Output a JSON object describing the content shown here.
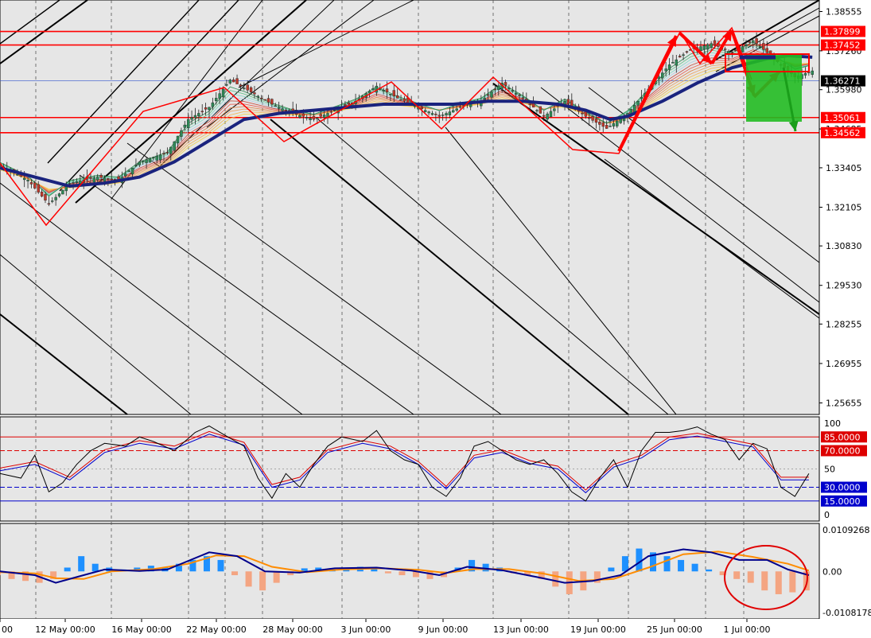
{
  "chart_data": {
    "type": "line",
    "colors": {
      "background": "#e6e6e6",
      "frame": "#000000",
      "candle_up": "#2e8b57",
      "candle_down": "#c0392b",
      "slow_ema": "#1a237e",
      "level_line": "#ff0000",
      "level_label_bg": "#ff0000",
      "current_price_bg": "#000000",
      "blue_level": "#0000ff",
      "signal_box": "#22bb22",
      "stoch_main": "#000000",
      "stoch_blue": "#0000cc",
      "stoch_red": "#dd0000",
      "hist_pos": "#1e90ff",
      "hist_neg": "#f4a582",
      "macd_line": "#00008b",
      "signal_line": "#ff8c00",
      "callout_ellipse": "#e00000"
    },
    "time_labels": [
      "00",
      "12 May 00:00",
      "16 May 00:00",
      "22 May 00:00",
      "28 May 00:00",
      "3 Jun 00:00",
      "9 Jun 00:00",
      "13 Jun 00:00",
      "19 Jun 00:00",
      "25 Jun 00:00",
      "1 Jul 00:00"
    ],
    "main": {
      "ylim": [
        1.25275,
        1.38935
      ],
      "ticks": [
        "1.38555",
        "1.37260",
        "1.35980",
        "1.34685",
        "1.33405",
        "1.32105",
        "1.30830",
        "1.29530",
        "1.28255",
        "1.26955",
        "1.25655"
      ],
      "levels": [
        {
          "value": 1.37899,
          "label": "1.37899"
        },
        {
          "value": 1.37452,
          "label": "1.37452"
        },
        {
          "value": 1.35061,
          "label": "1.35061"
        },
        {
          "value": 1.34562,
          "label": "1.34562"
        }
      ],
      "current_price": {
        "value": 1.36271,
        "label": "1.36271"
      },
      "price_path": [
        [
          0,
          1.335
        ],
        [
          8,
          1.33
        ],
        [
          14,
          1.322
        ],
        [
          20,
          1.329
        ],
        [
          28,
          1.331
        ],
        [
          34,
          1.33
        ],
        [
          40,
          1.336
        ],
        [
          48,
          1.339
        ],
        [
          54,
          1.35
        ],
        [
          60,
          1.354
        ],
        [
          66,
          1.363
        ],
        [
          72,
          1.359
        ],
        [
          78,
          1.355
        ],
        [
          84,
          1.352
        ],
        [
          90,
          1.35
        ],
        [
          96,
          1.353
        ],
        [
          102,
          1.356
        ],
        [
          108,
          1.361
        ],
        [
          114,
          1.357
        ],
        [
          120,
          1.354
        ],
        [
          126,
          1.351
        ],
        [
          132,
          1.354
        ],
        [
          138,
          1.356
        ],
        [
          144,
          1.362
        ],
        [
          150,
          1.357
        ],
        [
          156,
          1.351
        ],
        [
          162,
          1.356
        ],
        [
          168,
          1.351
        ],
        [
          174,
          1.347
        ],
        [
          180,
          1.352
        ],
        [
          186,
          1.36
        ],
        [
          192,
          1.368
        ],
        [
          198,
          1.373
        ],
        [
          204,
          1.375
        ],
        [
          210,
          1.372
        ],
        [
          216,
          1.376
        ],
        [
          222,
          1.37
        ],
        [
          228,
          1.364
        ],
        [
          233,
          1.366
        ]
      ],
      "slow_ema": [
        [
          0,
          1.334
        ],
        [
          10,
          1.331
        ],
        [
          20,
          1.328
        ],
        [
          30,
          1.329
        ],
        [
          40,
          1.331
        ],
        [
          50,
          1.336
        ],
        [
          60,
          1.343
        ],
        [
          70,
          1.35
        ],
        [
          80,
          1.352
        ],
        [
          90,
          1.353
        ],
        [
          100,
          1.354
        ],
        [
          110,
          1.355
        ],
        [
          120,
          1.355
        ],
        [
          130,
          1.355
        ],
        [
          140,
          1.356
        ],
        [
          150,
          1.356
        ],
        [
          160,
          1.355
        ],
        [
          168,
          1.353
        ],
        [
          175,
          1.35
        ],
        [
          180,
          1.351
        ],
        [
          190,
          1.356
        ],
        [
          200,
          1.362
        ],
        [
          210,
          1.367
        ],
        [
          220,
          1.37
        ],
        [
          226,
          1.371
        ],
        [
          233,
          1.3705
        ]
      ]
    },
    "stochastic": {
      "ylim": [
        0,
        100
      ],
      "ticks": [
        "100",
        "50",
        "0"
      ],
      "levels": [
        {
          "value": 85.0,
          "label": "85.0000",
          "style": "solid",
          "color": "red"
        },
        {
          "value": 70.0,
          "label": "70.0000",
          "style": "dashed",
          "color": "red"
        },
        {
          "value": 30.0,
          "label": "30.0000",
          "style": "dashed",
          "color": "blue"
        },
        {
          "value": 15.0,
          "label": "15.0000",
          "style": "solid",
          "color": "blue"
        }
      ],
      "main_line": [
        [
          0,
          45
        ],
        [
          6,
          40
        ],
        [
          10,
          65
        ],
        [
          14,
          25
        ],
        [
          18,
          35
        ],
        [
          22,
          55
        ],
        [
          26,
          70
        ],
        [
          30,
          78
        ],
        [
          36,
          75
        ],
        [
          40,
          85
        ],
        [
          44,
          80
        ],
        [
          50,
          70
        ],
        [
          56,
          90
        ],
        [
          60,
          97
        ],
        [
          64,
          88
        ],
        [
          70,
          75
        ],
        [
          74,
          40
        ],
        [
          78,
          18
        ],
        [
          82,
          45
        ],
        [
          86,
          30
        ],
        [
          90,
          55
        ],
        [
          94,
          75
        ],
        [
          98,
          85
        ],
        [
          104,
          80
        ],
        [
          108,
          92
        ],
        [
          112,
          70
        ],
        [
          116,
          60
        ],
        [
          120,
          55
        ],
        [
          124,
          30
        ],
        [
          128,
          20
        ],
        [
          132,
          40
        ],
        [
          136,
          75
        ],
        [
          140,
          80
        ],
        [
          144,
          70
        ],
        [
          148,
          60
        ],
        [
          152,
          55
        ],
        [
          156,
          60
        ],
        [
          160,
          45
        ],
        [
          164,
          25
        ],
        [
          168,
          15
        ],
        [
          172,
          40
        ],
        [
          176,
          60
        ],
        [
          180,
          30
        ],
        [
          184,
          70
        ],
        [
          188,
          90
        ],
        [
          192,
          90
        ],
        [
          196,
          92
        ],
        [
          200,
          96
        ],
        [
          204,
          88
        ],
        [
          208,
          82
        ],
        [
          212,
          60
        ],
        [
          216,
          78
        ],
        [
          220,
          72
        ],
        [
          224,
          30
        ],
        [
          228,
          20
        ],
        [
          232,
          45
        ]
      ],
      "signal_line": [
        [
          0,
          48
        ],
        [
          10,
          55
        ],
        [
          20,
          38
        ],
        [
          30,
          68
        ],
        [
          40,
          78
        ],
        [
          50,
          72
        ],
        [
          60,
          88
        ],
        [
          70,
          76
        ],
        [
          78,
          30
        ],
        [
          86,
          38
        ],
        [
          94,
          68
        ],
        [
          104,
          78
        ],
        [
          112,
          72
        ],
        [
          120,
          55
        ],
        [
          128,
          28
        ],
        [
          136,
          62
        ],
        [
          144,
          68
        ],
        [
          152,
          56
        ],
        [
          160,
          50
        ],
        [
          168,
          24
        ],
        [
          176,
          52
        ],
        [
          184,
          62
        ],
        [
          192,
          82
        ],
        [
          200,
          86
        ],
        [
          208,
          80
        ],
        [
          216,
          74
        ],
        [
          224,
          38
        ],
        [
          232,
          38
        ]
      ]
    },
    "macd": {
      "ylim": [
        -0.0108178,
        0.0109268
      ],
      "ticks": [
        "0.0109268",
        "0.00",
        "-0.0108178"
      ],
      "histogram": [
        [
          0,
          -0.001
        ],
        [
          4,
          -0.002
        ],
        [
          8,
          -0.0025
        ],
        [
          12,
          -0.003
        ],
        [
          16,
          -0.002
        ],
        [
          20,
          0.001
        ],
        [
          24,
          0.004
        ],
        [
          28,
          0.002
        ],
        [
          32,
          0.001
        ],
        [
          36,
          0.0005
        ],
        [
          40,
          0.001
        ],
        [
          44,
          0.0015
        ],
        [
          48,
          0.001
        ],
        [
          52,
          0.002
        ],
        [
          56,
          0.003
        ],
        [
          60,
          0.004
        ],
        [
          64,
          0.003
        ],
        [
          68,
          -0.001
        ],
        [
          72,
          -0.004
        ],
        [
          76,
          -0.005
        ],
        [
          80,
          -0.003
        ],
        [
          84,
          -0.001
        ],
        [
          88,
          0.0008
        ],
        [
          92,
          0.001
        ],
        [
          96,
          0.0008
        ],
        [
          100,
          0.001
        ],
        [
          104,
          0.0012
        ],
        [
          108,
          0.0008
        ],
        [
          112,
          -0.0005
        ],
        [
          116,
          -0.001
        ],
        [
          120,
          -0.0015
        ],
        [
          124,
          -0.002
        ],
        [
          128,
          -0.0015
        ],
        [
          132,
          0.001
        ],
        [
          136,
          0.003
        ],
        [
          140,
          0.002
        ],
        [
          144,
          0.001
        ],
        [
          148,
          -0.0005
        ],
        [
          152,
          -0.001
        ],
        [
          156,
          -0.002
        ],
        [
          160,
          -0.004
        ],
        [
          164,
          -0.006
        ],
        [
          168,
          -0.005
        ],
        [
          172,
          -0.003
        ],
        [
          176,
          0.001
        ],
        [
          180,
          0.004
        ],
        [
          184,
          0.006
        ],
        [
          188,
          0.005
        ],
        [
          192,
          0.004
        ],
        [
          196,
          0.003
        ],
        [
          200,
          0.002
        ],
        [
          204,
          0.0005
        ],
        [
          208,
          -0.001
        ],
        [
          212,
          -0.002
        ],
        [
          216,
          -0.003
        ],
        [
          220,
          -0.005
        ],
        [
          224,
          -0.006
        ],
        [
          228,
          -0.0055
        ],
        [
          232,
          -0.005
        ]
      ],
      "macd_line": [
        [
          0,
          0.0
        ],
        [
          10,
          -0.001
        ],
        [
          16,
          -0.003
        ],
        [
          22,
          -0.0015
        ],
        [
          30,
          0.0005
        ],
        [
          40,
          0.0001
        ],
        [
          48,
          0.0005
        ],
        [
          60,
          0.005
        ],
        [
          68,
          0.004
        ],
        [
          76,
          0.0
        ],
        [
          86,
          -0.0003
        ],
        [
          96,
          0.0008
        ],
        [
          108,
          0.001
        ],
        [
          118,
          0.0002
        ],
        [
          126,
          -0.001
        ],
        [
          134,
          0.0012
        ],
        [
          144,
          0.0003
        ],
        [
          154,
          -0.0015
        ],
        [
          162,
          -0.003
        ],
        [
          170,
          -0.0025
        ],
        [
          178,
          -0.001
        ],
        [
          186,
          0.004
        ],
        [
          196,
          0.0058
        ],
        [
          204,
          0.005
        ],
        [
          212,
          0.003
        ],
        [
          220,
          0.003
        ],
        [
          226,
          0.0005
        ],
        [
          232,
          -0.001
        ]
      ],
      "signal_line": [
        [
          0,
          -0.0002
        ],
        [
          10,
          -0.0005
        ],
        [
          16,
          -0.0018
        ],
        [
          24,
          -0.002
        ],
        [
          32,
          0.0
        ],
        [
          44,
          0.0006
        ],
        [
          54,
          0.002
        ],
        [
          62,
          0.0042
        ],
        [
          70,
          0.004
        ],
        [
          78,
          0.0012
        ],
        [
          88,
          -0.0002
        ],
        [
          98,
          0.0005
        ],
        [
          110,
          0.0008
        ],
        [
          120,
          0.0004
        ],
        [
          128,
          -0.0004
        ],
        [
          136,
          0.0006
        ],
        [
          146,
          0.0006
        ],
        [
          156,
          -0.0006
        ],
        [
          166,
          -0.0025
        ],
        [
          176,
          -0.002
        ],
        [
          186,
          0.001
        ],
        [
          196,
          0.0045
        ],
        [
          206,
          0.0052
        ],
        [
          216,
          0.0038
        ],
        [
          226,
          0.002
        ],
        [
          232,
          0.0002
        ]
      ]
    }
  }
}
